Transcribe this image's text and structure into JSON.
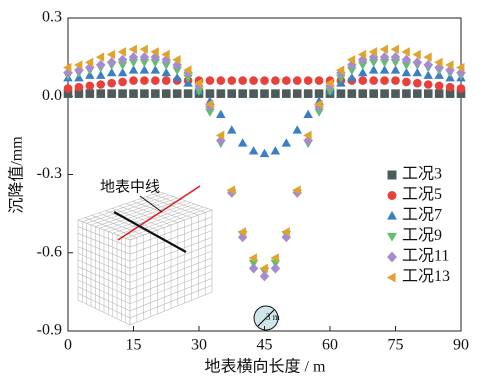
{
  "chart_data": {
    "type": "scatter",
    "x_label": "地表横向长度 / m",
    "y_label": "沉降值/mm",
    "inset_label": "地表中线",
    "scale_label": "3 m",
    "xlim": [
      0,
      90
    ],
    "xticks": [
      0,
      15,
      30,
      45,
      60,
      75,
      90
    ],
    "ylim": [
      -0.9,
      0.3
    ],
    "yticks": [
      0.3,
      {
        "value": 0,
        "label": "0.0"
      },
      -0.3,
      -0.6,
      -0.9
    ],
    "legend": "right",
    "x": [
      0,
      2.5,
      5,
      7.5,
      10,
      12.5,
      15,
      17.5,
      20,
      22.5,
      25,
      27.5,
      30,
      32.5,
      35,
      37.5,
      40,
      42.5,
      45,
      47.5,
      50,
      52.5,
      55,
      57.5,
      60,
      62.5,
      65,
      67.5,
      70,
      72.5,
      75,
      77.5,
      80,
      82.5,
      85,
      87.5,
      90
    ],
    "series": [
      {
        "name": "工况3",
        "color": "#4f5b5b",
        "marker": "square",
        "values": [
          0.01,
          0.01,
          0.01,
          0.01,
          0.01,
          0.01,
          0.01,
          0.01,
          0.01,
          0.01,
          0.01,
          0.01,
          0.01,
          0.01,
          0.01,
          0.01,
          0.01,
          0.01,
          0.01,
          0.01,
          0.01,
          0.01,
          0.01,
          0.01,
          0.01,
          0.01,
          0.01,
          0.01,
          0.01,
          0.01,
          0.01,
          0.01,
          0.01,
          0.01,
          0.01,
          0.01,
          0.01
        ]
      },
      {
        "name": "工况5",
        "color": "#e8413c",
        "marker": "circle",
        "values": [
          0.03,
          0.035,
          0.04,
          0.045,
          0.05,
          0.055,
          0.06,
          0.06,
          0.06,
          0.06,
          0.06,
          0.06,
          0.06,
          0.06,
          0.06,
          0.06,
          0.06,
          0.06,
          0.06,
          0.06,
          0.06,
          0.06,
          0.06,
          0.06,
          0.06,
          0.06,
          0.06,
          0.06,
          0.06,
          0.06,
          0.06,
          0.055,
          0.05,
          0.045,
          0.04,
          0.035,
          0.03
        ]
      },
      {
        "name": "工况7",
        "color": "#3a7fc4",
        "marker": "triangle-up",
        "values": [
          0.07,
          0.07,
          0.08,
          0.08,
          0.09,
          0.09,
          0.1,
          0.1,
          0.1,
          0.09,
          0.07,
          0.05,
          0.02,
          -0.02,
          -0.07,
          -0.13,
          -0.18,
          -0.21,
          -0.22,
          -0.21,
          -0.18,
          -0.13,
          -0.07,
          -0.02,
          0.02,
          0.05,
          0.07,
          0.09,
          0.1,
          0.1,
          0.1,
          0.09,
          0.09,
          0.08,
          0.08,
          0.07,
          0.07
        ]
      },
      {
        "name": "工况9",
        "color": "#5fbf6a",
        "marker": "triangle-down",
        "values": [
          0.08,
          0.09,
          0.1,
          0.11,
          0.12,
          0.12,
          0.13,
          0.13,
          0.13,
          0.12,
          0.1,
          0.07,
          0.02,
          -0.06,
          -0.18,
          -0.37,
          -0.53,
          -0.64,
          -0.67,
          -0.64,
          -0.53,
          -0.37,
          -0.18,
          -0.06,
          0.02,
          0.07,
          0.1,
          0.12,
          0.13,
          0.13,
          0.13,
          0.12,
          0.12,
          0.11,
          0.1,
          0.09,
          0.08
        ]
      },
      {
        "name": "工况11",
        "color": "#a58ccf",
        "marker": "diamond",
        "values": [
          0.09,
          0.1,
          0.11,
          0.12,
          0.13,
          0.14,
          0.15,
          0.15,
          0.15,
          0.14,
          0.12,
          0.09,
          0.04,
          -0.04,
          -0.17,
          -0.37,
          -0.54,
          -0.66,
          -0.69,
          -0.66,
          -0.54,
          -0.37,
          -0.17,
          -0.04,
          0.04,
          0.09,
          0.12,
          0.14,
          0.15,
          0.15,
          0.15,
          0.14,
          0.13,
          0.12,
          0.11,
          0.1,
          0.09
        ]
      },
      {
        "name": "工况13",
        "color": "#e0a32e",
        "marker": "triangle-left",
        "values": [
          0.11,
          0.12,
          0.13,
          0.15,
          0.16,
          0.17,
          0.18,
          0.18,
          0.17,
          0.16,
          0.14,
          0.1,
          0.05,
          -0.03,
          -0.15,
          -0.36,
          -0.52,
          -0.62,
          -0.66,
          -0.62,
          -0.52,
          -0.36,
          -0.15,
          -0.03,
          0.05,
          0.1,
          0.14,
          0.16,
          0.17,
          0.18,
          0.18,
          0.17,
          0.16,
          0.15,
          0.13,
          0.12,
          0.11
        ]
      }
    ]
  }
}
